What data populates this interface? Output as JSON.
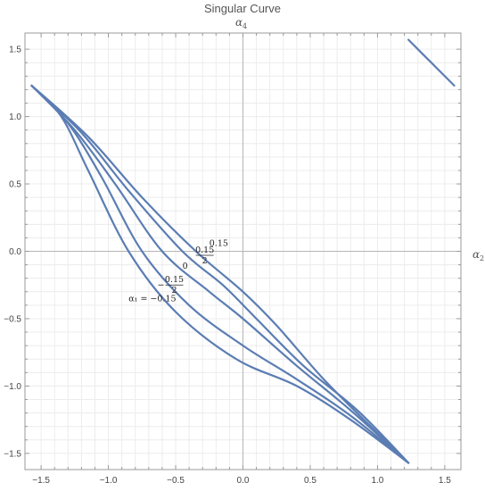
{
  "chart_data": {
    "type": "line",
    "title": "Singular Curve",
    "xlabel": {
      "symbol": "α",
      "subscript": "2"
    },
    "ylabel": {
      "symbol": "α",
      "subscript": "4"
    },
    "xlim": [
      -1.62,
      1.62
    ],
    "ylim": [
      -1.62,
      1.62
    ],
    "x_ticks": [
      "−1.5",
      "−1.0",
      "−0.5",
      "0.0",
      "0.5",
      "1.0",
      "1.5"
    ],
    "y_ticks": [
      "1.5",
      "1.0",
      "0.5",
      "0.0",
      "−0.5",
      "−1.0",
      "−1.5"
    ],
    "grid": true,
    "series": [
      {
        "label": "α₁ = −0.15",
        "points": [
          [
            -1.57,
            1.23
          ],
          [
            -1.35,
            1.0
          ],
          [
            -1.15,
            0.6
          ],
          [
            -0.85,
            0.0
          ],
          [
            -0.5,
            -0.45
          ],
          [
            -0.05,
            -0.8
          ],
          [
            0.4,
            -1.0
          ],
          [
            0.8,
            -1.25
          ],
          [
            1.23,
            -1.57
          ]
        ]
      },
      {
        "label": "−0.15/2",
        "points": [
          [
            -1.57,
            1.23
          ],
          [
            -1.3,
            0.95
          ],
          [
            -1.05,
            0.55
          ],
          [
            -0.75,
            0.0
          ],
          [
            -0.4,
            -0.4
          ],
          [
            0.0,
            -0.7
          ],
          [
            0.4,
            -0.95
          ],
          [
            0.8,
            -1.22
          ],
          [
            1.23,
            -1.57
          ]
        ]
      },
      {
        "label": "0",
        "points": [
          [
            -1.57,
            1.23
          ],
          [
            -1.25,
            0.9
          ],
          [
            -0.95,
            0.5
          ],
          [
            -0.6,
            0.0
          ],
          [
            -0.25,
            -0.3
          ],
          [
            0.0,
            -0.5
          ],
          [
            0.4,
            -0.85
          ],
          [
            0.8,
            -1.18
          ],
          [
            1.23,
            -1.57
          ]
        ]
      },
      {
        "label": "0.15/2",
        "points": [
          [
            -1.57,
            1.23
          ],
          [
            -1.2,
            0.88
          ],
          [
            -0.85,
            0.45
          ],
          [
            -0.45,
            0.0
          ],
          [
            -0.15,
            -0.25
          ],
          [
            0.1,
            -0.5
          ],
          [
            0.45,
            -0.85
          ],
          [
            0.85,
            -1.18
          ],
          [
            1.23,
            -1.57
          ]
        ]
      },
      {
        "label": "0.15",
        "points": [
          [
            -1.57,
            1.23
          ],
          [
            -1.15,
            0.85
          ],
          [
            -0.75,
            0.4
          ],
          [
            -0.35,
            0.0
          ],
          [
            0.0,
            -0.3
          ],
          [
            0.25,
            -0.55
          ],
          [
            0.6,
            -0.95
          ],
          [
            0.95,
            -1.3
          ],
          [
            1.23,
            -1.57
          ]
        ]
      },
      {
        "label": "",
        "points": [
          [
            1.23,
            1.57
          ],
          [
            1.4,
            1.4
          ],
          [
            1.57,
            1.23
          ]
        ]
      }
    ],
    "annotations": [
      {
        "text": "α₁ = −0.15",
        "at": [
          -0.85,
          -0.37
        ]
      },
      {
        "text": "0.15",
        "over": "2",
        "minus": true,
        "at": [
          -0.55,
          -0.25
        ]
      },
      {
        "text": "0",
        "at": [
          -0.45,
          -0.13
        ]
      },
      {
        "text": "0.15",
        "over": "2",
        "minus": false,
        "at": [
          -0.35,
          -0.03
        ]
      },
      {
        "text": "0.15",
        "at": [
          -0.25,
          0.04
        ]
      }
    ]
  }
}
